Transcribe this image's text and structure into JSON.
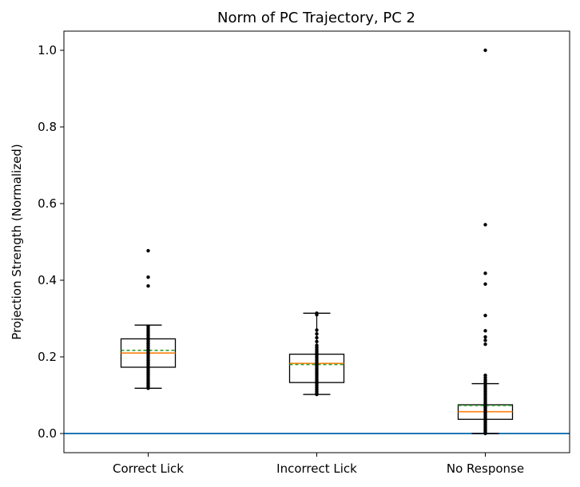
{
  "chart_data": {
    "type": "box",
    "title": "Norm of PC Trajectory, PC 2",
    "xlabel": "",
    "ylabel": "Projection Strength (Normalized)",
    "ylim": [
      -0.05,
      1.05
    ],
    "yticks": [
      0.0,
      0.2,
      0.4,
      0.6,
      0.8,
      1.0
    ],
    "ytick_labels": [
      "0.0",
      "0.2",
      "0.4",
      "0.6",
      "0.8",
      "1.0"
    ],
    "categories": [
      "Correct Lick",
      "Incorrect Lick",
      "No Response"
    ],
    "reference_line": {
      "y": 0.0,
      "color": "#1f77b4"
    },
    "colors": {
      "box": "#000000",
      "median": "#ff7f0e",
      "mean": "#2ca02c",
      "points": "#000000"
    },
    "grid": false,
    "boxes": [
      {
        "name": "Correct Lick",
        "whisker_low": 0.118,
        "q1": 0.173,
        "median": 0.21,
        "q3": 0.247,
        "whisker_high": 0.283,
        "mean": 0.217,
        "points": [
          0.118,
          0.122,
          0.126,
          0.13,
          0.135,
          0.14,
          0.145,
          0.15,
          0.155,
          0.16,
          0.165,
          0.17,
          0.175,
          0.18,
          0.185,
          0.19,
          0.195,
          0.2,
          0.205,
          0.21,
          0.215,
          0.22,
          0.225,
          0.23,
          0.235,
          0.24,
          0.245,
          0.25,
          0.255,
          0.26,
          0.265,
          0.27,
          0.275,
          0.28
        ],
        "outliers": [
          0.385,
          0.408,
          0.477
        ]
      },
      {
        "name": "Incorrect Lick",
        "whisker_low": 0.102,
        "q1": 0.133,
        "median": 0.183,
        "q3": 0.207,
        "whisker_high": 0.314,
        "mean": 0.18,
        "points": [
          0.102,
          0.106,
          0.11,
          0.115,
          0.12,
          0.125,
          0.13,
          0.135,
          0.14,
          0.145,
          0.15,
          0.155,
          0.16,
          0.165,
          0.17,
          0.175,
          0.18,
          0.185,
          0.19,
          0.195,
          0.2,
          0.205,
          0.21,
          0.215,
          0.22,
          0.225,
          0.23,
          0.24,
          0.25,
          0.26,
          0.27,
          0.31,
          0.314
        ],
        "outliers": []
      },
      {
        "name": "No Response",
        "whisker_low": 0.0,
        "q1": 0.037,
        "median": 0.057,
        "q3": 0.075,
        "whisker_high": 0.13,
        "mean": 0.073,
        "points": [
          0.0,
          0.004,
          0.008,
          0.012,
          0.016,
          0.02,
          0.024,
          0.028,
          0.032,
          0.036,
          0.04,
          0.044,
          0.048,
          0.052,
          0.056,
          0.06,
          0.064,
          0.068,
          0.072,
          0.076,
          0.08,
          0.085,
          0.09,
          0.095,
          0.1,
          0.105,
          0.11,
          0.115,
          0.12,
          0.125,
          0.13
        ],
        "outliers": [
          0.135,
          0.14,
          0.146,
          0.152,
          0.233,
          0.243,
          0.252,
          0.268,
          0.308,
          0.39,
          0.418,
          0.545,
          1.0
        ]
      }
    ]
  }
}
